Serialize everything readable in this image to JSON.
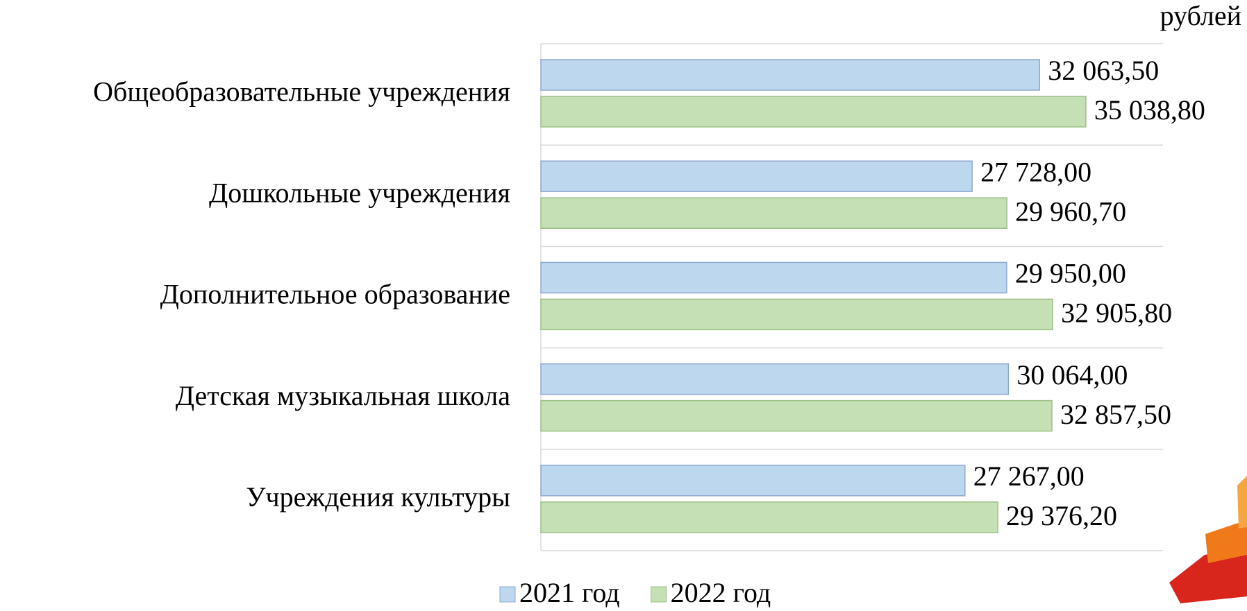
{
  "chart_data": {
    "type": "bar",
    "orientation": "horizontal",
    "unit_label": "рублей",
    "categories": [
      "Общеобразовательные учреждения",
      "Дошкольные учреждения",
      "Дополнительное образование",
      "Детская музыкальная школа",
      "Учреждения культуры"
    ],
    "series": [
      {
        "name": "2021 год",
        "color": "#bdd7ee",
        "values": [
          32063.5,
          27728.0,
          29950.0,
          30064.0,
          27267.0
        ],
        "value_labels": [
          "32 063,50",
          "27 728,00",
          "29 950,00",
          "30 064,00",
          "27 267,00"
        ]
      },
      {
        "name": "2022 год",
        "color": "#c5e0b4",
        "values": [
          35038.8,
          29960.7,
          32905.8,
          32857.5,
          29376.2
        ],
        "value_labels": [
          "35 038,80",
          "29 960,70",
          "32 905,80",
          "32 857,50",
          "29 376,20"
        ]
      }
    ],
    "xlim": [
      0,
      40000
    ],
    "legend": "bottom"
  }
}
